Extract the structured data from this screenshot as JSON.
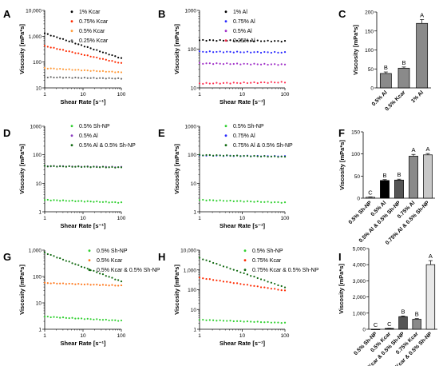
{
  "panels": [
    {
      "letter": "A",
      "chart_data": {
        "type": "scatter",
        "xscale": "log",
        "yscale": "log",
        "xlabel": "Shear Rate [s⁻¹]",
        "ylabel": "Viscosity [mPa*s]",
        "xlim": [
          1,
          100
        ],
        "ylim": [
          10,
          10000
        ],
        "xticks": [
          {
            "v": 1,
            "label": "1"
          },
          {
            "v": 10,
            "label": "10"
          },
          {
            "v": 100,
            "label": "100"
          }
        ],
        "yticks": [
          {
            "v": 10,
            "label": "10"
          },
          {
            "v": 100,
            "label": "100"
          },
          {
            "v": 1000,
            "label": "1,000"
          },
          {
            "v": 10000,
            "label": "10,000"
          }
        ],
        "legend_position": "top-right",
        "series": [
          {
            "name": "1% Kcar",
            "color": "#000000",
            "y_start": 1300,
            "y_end": 140
          },
          {
            "name": "0.75% Kcar",
            "color": "#ff2a00",
            "y_start": 420,
            "y_end": 90
          },
          {
            "name": "0.5% Kcar",
            "color": "#ff9a3a",
            "y_start": 58,
            "y_end": 40
          },
          {
            "name": "0.25% Kcar",
            "color": "#6a6a6a",
            "y_start": 26,
            "y_end": 23
          }
        ]
      }
    },
    {
      "letter": "B",
      "chart_data": {
        "type": "scatter",
        "xscale": "log",
        "yscale": "log",
        "xlabel": "Shear Rate [s⁻¹]",
        "ylabel": "Viscosity [mPa*s]",
        "xlim": [
          1,
          100
        ],
        "ylim": [
          10,
          1000
        ],
        "xticks": [
          {
            "v": 1,
            "label": "1"
          },
          {
            "v": 10,
            "label": "10"
          },
          {
            "v": 100,
            "label": "100"
          }
        ],
        "yticks": [
          {
            "v": 10,
            "label": "10"
          },
          {
            "v": 100,
            "label": "100"
          },
          {
            "v": 1000,
            "label": "1000"
          }
        ],
        "legend_position": "top-right",
        "series": [
          {
            "name": "1% Al",
            "color": "#000000",
            "y_start": 170,
            "y_end": 160
          },
          {
            "name": "0.75% Al",
            "color": "#2a2aff",
            "y_start": 86,
            "y_end": 82
          },
          {
            "name": "0.5% Al",
            "color": "#a030c8",
            "y_start": 43,
            "y_end": 40
          },
          {
            "name": "0.25% Al",
            "color": "#ff3050",
            "y_start": 13,
            "y_end": 14
          }
        ]
      }
    },
    {
      "letter": "C",
      "chart_data": {
        "type": "bar",
        "ylabel": "Viscosity [mPa*s]",
        "ylim": [
          0,
          200
        ],
        "yticks": [
          {
            "v": 0,
            "label": "0"
          },
          {
            "v": 50,
            "label": "50"
          },
          {
            "v": 100,
            "label": "100"
          },
          {
            "v": 150,
            "label": "150"
          },
          {
            "v": 200,
            "label": "200"
          }
        ],
        "categories": [
          "0.5% Al",
          "0.5% Kcar",
          "1% Al"
        ],
        "values": [
          38,
          52,
          170
        ],
        "errors": [
          4,
          3,
          10
        ],
        "letters": [
          "B",
          "B",
          "A"
        ],
        "colors": [
          "#8a8a8a",
          "#8a8a8a",
          "#8a8a8a"
        ]
      }
    },
    {
      "letter": "D",
      "chart_data": {
        "type": "scatter",
        "xscale": "log",
        "yscale": "log",
        "xlabel": "Shear Rate [s⁻¹]",
        "ylabel": "Viscosity [mPa*s]",
        "xlim": [
          1,
          100
        ],
        "ylim": [
          1,
          1000
        ],
        "xticks": [
          {
            "v": 1,
            "label": "1"
          },
          {
            "v": 10,
            "label": "10"
          },
          {
            "v": 100,
            "label": "100"
          }
        ],
        "yticks": [
          {
            "v": 1,
            "label": "1"
          },
          {
            "v": 10,
            "label": "10"
          },
          {
            "v": 100,
            "label": "100"
          },
          {
            "v": 1000,
            "label": "1000"
          }
        ],
        "legend_position": "top-right",
        "series": [
          {
            "name": "0.5% Sh-NP",
            "color": "#30d030",
            "y_start": 2.6,
            "y_end": 2.1
          },
          {
            "name": "0.5% Al",
            "color": "#8a3cc0",
            "y_start": 40,
            "y_end": 37
          },
          {
            "name": "0.5% Al & 0.5% Sh-NP",
            "color": "#126a12",
            "y_start": 40,
            "y_end": 36
          }
        ]
      }
    },
    {
      "letter": "E",
      "chart_data": {
        "type": "scatter",
        "xscale": "log",
        "yscale": "log",
        "xlabel": "Shear Rate [s⁻¹]",
        "ylabel": "Viscosity [mPa*s]",
        "xlim": [
          1,
          100
        ],
        "ylim": [
          1,
          1000
        ],
        "xticks": [
          {
            "v": 1,
            "label": "1"
          },
          {
            "v": 10,
            "label": "10"
          },
          {
            "v": 100,
            "label": "100"
          }
        ],
        "yticks": [
          {
            "v": 1,
            "label": "1"
          },
          {
            "v": 10,
            "label": "10"
          },
          {
            "v": 100,
            "label": "100"
          },
          {
            "v": 1000,
            "label": "1000"
          }
        ],
        "legend_position": "top-right",
        "series": [
          {
            "name": "0.5% Sh-NP",
            "color": "#30d030",
            "y_start": 2.6,
            "y_end": 2.1
          },
          {
            "name": "0.75% Al",
            "color": "#2a2aff",
            "y_start": 95,
            "y_end": 88
          },
          {
            "name": "0.75% Al & 0.5% Sh-NP",
            "color": "#126a12",
            "y_start": 98,
            "y_end": 85
          }
        ]
      }
    },
    {
      "letter": "F",
      "chart_data": {
        "type": "bar",
        "ylabel": "Viscosity [mPa*s]",
        "ylim": [
          0,
          150
        ],
        "yticks": [
          {
            "v": 0,
            "label": "0"
          },
          {
            "v": 50,
            "label": "50"
          },
          {
            "v": 100,
            "label": "100"
          },
          {
            "v": 150,
            "label": "150"
          }
        ],
        "categories": [
          "0.5% Sh-NP",
          "0.5% Al",
          "0.5% Al & 0.5% Sh-NP",
          "0.75% Al",
          "0.75% Al & 0.5% Sh-NP"
        ],
        "values": [
          2,
          40,
          41,
          95,
          98
        ],
        "errors": [
          1,
          2,
          2,
          4,
          3
        ],
        "letters": [
          "C",
          "B",
          "B",
          "A",
          "A"
        ],
        "colors": [
          "#ffffff",
          "#000000",
          "#555555",
          "#8a8a8a",
          "#c8c8c8"
        ]
      }
    },
    {
      "letter": "G",
      "chart_data": {
        "type": "scatter",
        "xscale": "log",
        "yscale": "log",
        "xlabel": "Shear Rate [s⁻¹]",
        "ylabel": "Viscosity [mPa*s]",
        "xlim": [
          1,
          100
        ],
        "ylim": [
          1,
          1000
        ],
        "xticks": [
          {
            "v": 1,
            "label": "1"
          },
          {
            "v": 10,
            "label": "10"
          },
          {
            "v": 100,
            "label": "100"
          }
        ],
        "yticks": [
          {
            "v": 1,
            "label": "1"
          },
          {
            "v": 10,
            "label": "10"
          },
          {
            "v": 100,
            "label": "100"
          },
          {
            "v": 1000,
            "label": "1,000"
          }
        ],
        "legend_position": "top-right",
        "series": [
          {
            "name": "0.5% Sh-NP",
            "color": "#30d030",
            "y_start": 3.0,
            "y_end": 2.1
          },
          {
            "name": "0.5% Kcar",
            "color": "#ff7a20",
            "y_start": 57,
            "y_end": 45
          },
          {
            "name": "0.5% Kcar & 0.5% Sh-NP",
            "color": "#126a12",
            "y_start": 800,
            "y_end": 65
          }
        ]
      }
    },
    {
      "letter": "H",
      "chart_data": {
        "type": "scatter",
        "xscale": "log",
        "yscale": "log",
        "xlabel": "Shear Rate [s⁻¹]",
        "ylabel": "Viscosity [mPa*s]",
        "xlim": [
          1,
          100
        ],
        "ylim": [
          1,
          10000
        ],
        "xticks": [
          {
            "v": 1,
            "label": "1"
          },
          {
            "v": 10,
            "label": "10"
          },
          {
            "v": 100,
            "label": "100"
          }
        ],
        "yticks": [
          {
            "v": 1,
            "label": "1"
          },
          {
            "v": 10,
            "label": "10"
          },
          {
            "v": 100,
            "label": "100"
          },
          {
            "v": 1000,
            "label": "1,000"
          },
          {
            "v": 10000,
            "label": "10,000"
          }
        ],
        "legend_position": "top-right",
        "series": [
          {
            "name": "0.5% Sh-NP",
            "color": "#30d030",
            "y_start": 3.0,
            "y_end": 2.1
          },
          {
            "name": "0.75% Kcar",
            "color": "#ff2a00",
            "y_start": 400,
            "y_end": 90
          },
          {
            "name": "0.75% Kcar & 0.5% Sh-NP",
            "color": "#126a12",
            "y_start": 4000,
            "y_end": 130
          }
        ]
      }
    },
    {
      "letter": "I",
      "chart_data": {
        "type": "bar",
        "ylabel": "Viscosity [mPa*s]",
        "ylim": [
          0,
          5000
        ],
        "yticks": [
          {
            "v": 0,
            "label": "0"
          },
          {
            "v": 1000,
            "label": "1,000"
          },
          {
            "v": 2000,
            "label": "2,000"
          },
          {
            "v": 3000,
            "label": "3,000"
          },
          {
            "v": 4000,
            "label": "4,000"
          },
          {
            "v": 5000,
            "label": "5,000"
          }
        ],
        "categories": [
          "0.5% Sh-NP",
          "0.5% Kcar",
          "0.5% Kcar & 0.5% Sh-NP",
          "0.75% Kcar",
          "0.75% Kcar & 0.5% Sh-NP"
        ],
        "values": [
          3,
          50,
          780,
          620,
          4000
        ],
        "errors": [
          0,
          10,
          40,
          40,
          250
        ],
        "letters": [
          "C",
          "C",
          "B",
          "B",
          "A"
        ],
        "colors": [
          "#ffffff",
          "#000000",
          "#555555",
          "#8a8a8a",
          "#e8e8e8"
        ]
      }
    }
  ]
}
